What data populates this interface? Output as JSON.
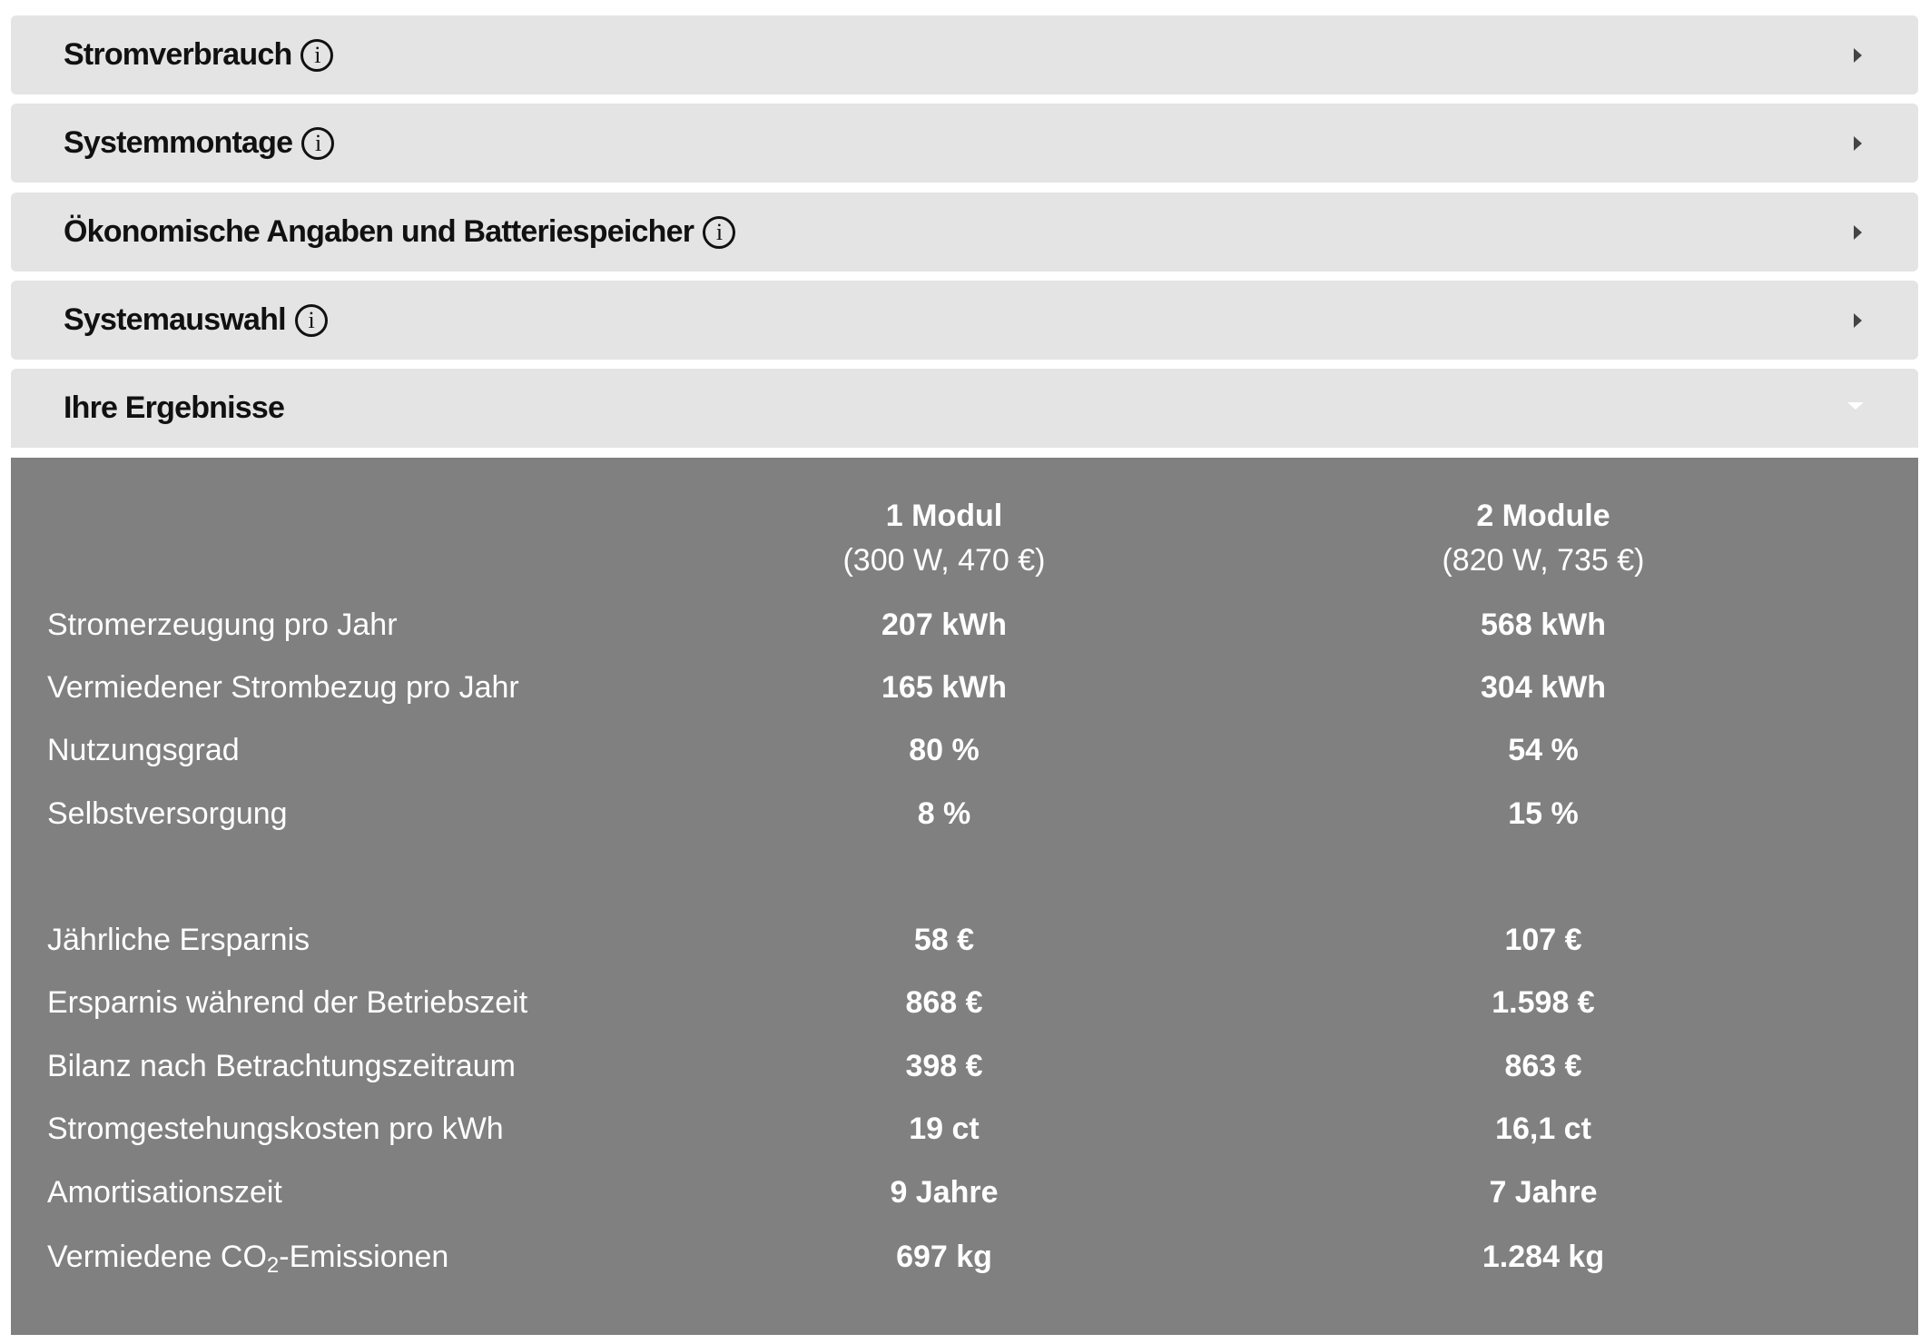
{
  "accordion": [
    {
      "title": "Stromverbrauch",
      "info": true,
      "expanded": false
    },
    {
      "title": "Systemmontage",
      "info": true,
      "expanded": false
    },
    {
      "title": "Ökonomische Angaben und Batteriespeicher",
      "info": true,
      "expanded": false
    },
    {
      "title": "Systemauswahl",
      "info": true,
      "expanded": false
    },
    {
      "title": "Ihre Ergebnisse",
      "info": false,
      "expanded": true
    }
  ],
  "info_glyph": "i",
  "results": {
    "columns": [
      {
        "name": "1 Modul",
        "detail": "(300 W, 470 €)"
      },
      {
        "name": "2 Module",
        "detail": "(820 W, 735 €)"
      }
    ],
    "rows": [
      {
        "label": "Stromerzeugung pro Jahr",
        "v1": "207 kWh",
        "v2": "568 kWh"
      },
      {
        "label": "Vermiedener Strombezug pro Jahr",
        "v1": "165 kWh",
        "v2": "304 kWh"
      },
      {
        "label": "Nutzungsgrad",
        "v1": "80 %",
        "v2": "54 %"
      },
      {
        "label": "Selbstversorgung",
        "v1": "8 %",
        "v2": "15 %"
      },
      {
        "label": "Jährliche Ersparnis",
        "v1": "58 €",
        "v2": "107 €"
      },
      {
        "label": "Ersparnis während der Betriebszeit",
        "v1": "868 €",
        "v2": "1.598 €"
      },
      {
        "label": "Bilanz nach Betrachtungszeitraum",
        "v1": "398 €",
        "v2": "863 €"
      },
      {
        "label": "Stromgestehungskosten pro kWh",
        "v1": "19 ct",
        "v2": "16,1 ct"
      },
      {
        "label": "Amortisationszeit",
        "v1": "9 Jahre",
        "v2": "7 Jahre"
      },
      {
        "label_pre": "Vermiedene CO",
        "label_sub": "2",
        "label_post": "-Emissionen",
        "v1": "697 kg",
        "v2": "1.284 kg"
      }
    ]
  },
  "colors": {
    "panel": "#e4e4e4",
    "results_bg": "#808080",
    "text_dark": "#111111",
    "text_light": "#ffffff"
  }
}
